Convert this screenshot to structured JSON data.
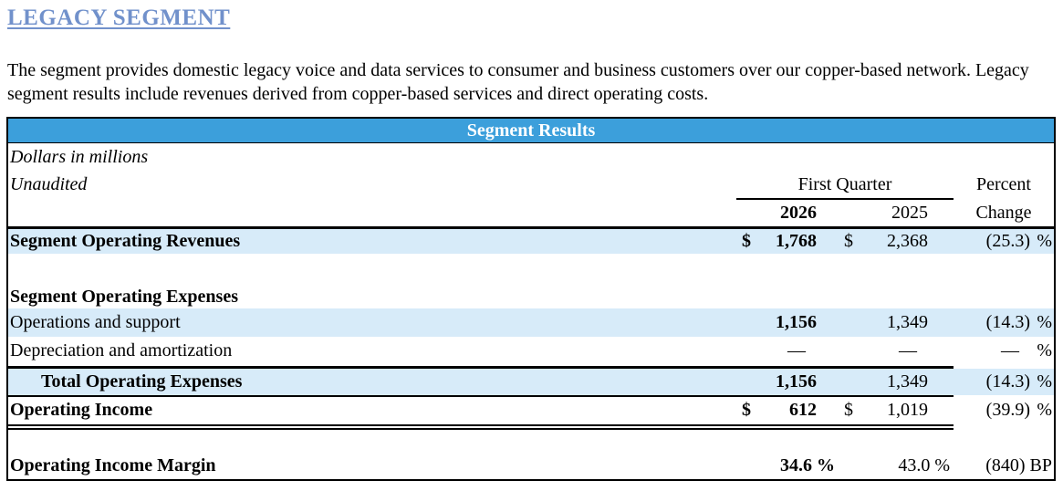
{
  "title": "LEGACY SEGMENT",
  "description": "The segment provides domestic legacy voice and data services to consumer and business customers over our copper-based network. Legacy segment results include revenues derived from copper-based services and direct operating costs.",
  "colors": {
    "header_bar_blue": "#3C9FDB",
    "row_highlight_blue": "#D7EBF9",
    "title_link_blue": "#7191CB"
  },
  "table": {
    "header": "Segment Results",
    "note_line1": "Dollars in millions",
    "note_line2": "Unaudited",
    "col_group_label": "First Quarter",
    "pct_header_line1": "Percent",
    "pct_header_line2": "Change",
    "year_2026": "2026",
    "year_2025": "2025",
    "rows": {
      "revenues": {
        "label": "Segment Operating Revenues",
        "cur1": "$",
        "v2026": "1,768",
        "cur2": "$",
        "v2025": "2,368",
        "pct": "(25.3)",
        "pct_sign": "%"
      },
      "expenses_header": {
        "label": "Segment Operating Expenses"
      },
      "ops": {
        "label": "Operations and support",
        "v2026": "1,156",
        "v2025": "1,349",
        "pct": "(14.3)",
        "pct_sign": "%"
      },
      "dep": {
        "label": "Depreciation and amortization",
        "v2026": "—",
        "v2025": "—",
        "pct": "—",
        "pct_sign": "%"
      },
      "total": {
        "label": "Total Operating Expenses",
        "v2026": "1,156",
        "v2025": "1,349",
        "pct": "(14.3)",
        "pct_sign": "%"
      },
      "op_income": {
        "label": "Operating Income",
        "cur1": "$",
        "v2026": "612",
        "cur2": "$",
        "v2025": "1,019",
        "pct": "(39.9)",
        "pct_sign": "%"
      },
      "margin": {
        "label": "Operating Income Margin",
        "v2026": "34.6 %",
        "v2025": "43.0 %",
        "pct": "(840) BP"
      }
    }
  }
}
